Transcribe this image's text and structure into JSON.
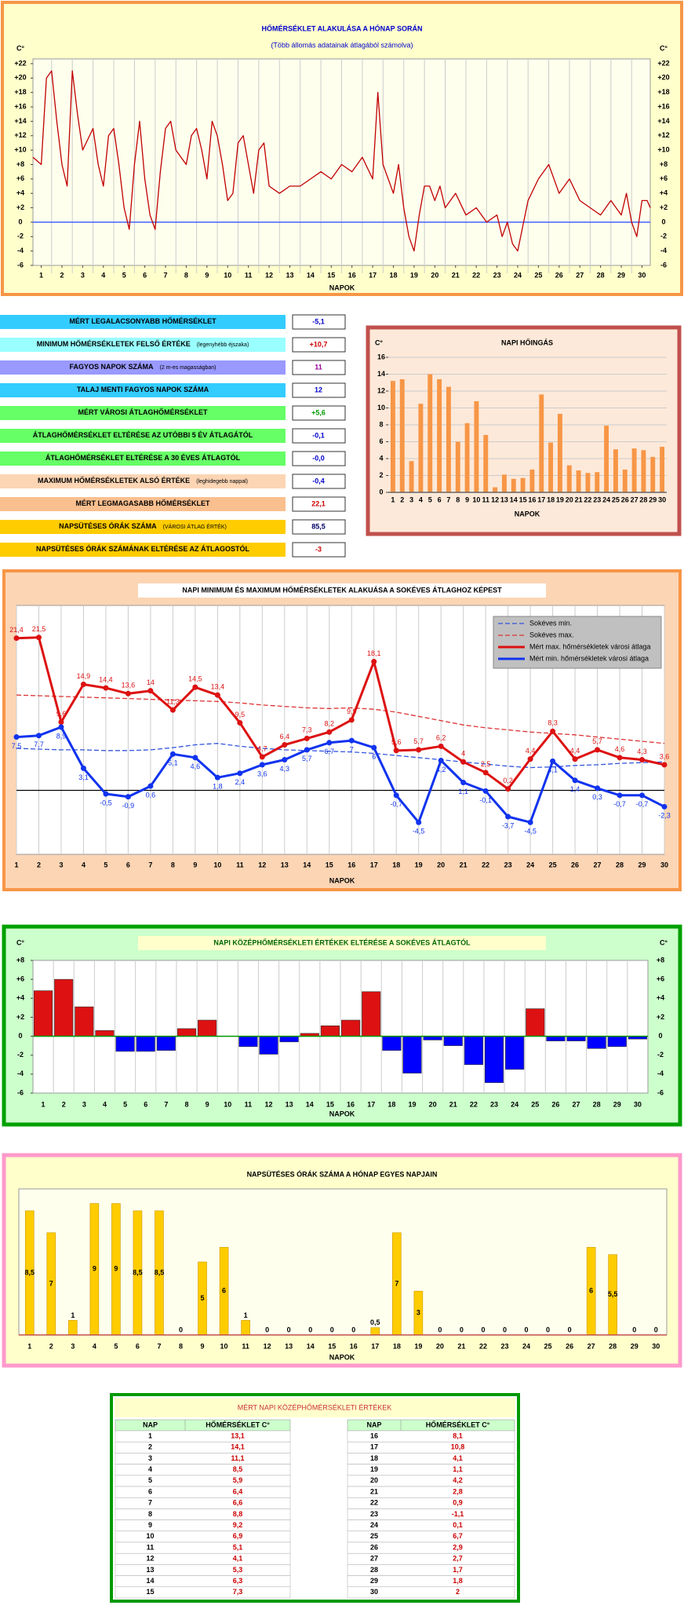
{
  "chart_data": [
    {
      "type": "line",
      "title": "HŐMÉRSÉKLET ALAKULÁSA A HÓNAP SORÁN",
      "subtitle": "(Több állomás adatainak átlagából számolva)",
      "y_unit": "C°",
      "xlabel": "NAPOK",
      "color": "#c00000",
      "zero_line_color": "#3355ff",
      "xlim": [
        0.6,
        30.4
      ],
      "xticks": [
        1,
        2,
        3,
        4,
        5,
        6,
        7,
        8,
        9,
        10,
        11,
        12,
        13,
        14,
        15,
        16,
        17,
        18,
        19,
        20,
        21,
        22,
        23,
        24,
        25,
        26,
        27,
        28,
        29,
        30
      ],
      "ylim": [
        -6,
        22
      ],
      "yticks": [
        {
          "value": 22,
          "label": "+22"
        },
        {
          "value": 20,
          "label": "+20"
        },
        {
          "value": 18,
          "label": "+18"
        },
        {
          "value": 16,
          "label": "+16"
        },
        {
          "value": 14,
          "label": "+14"
        },
        {
          "value": 12,
          "label": "+12"
        },
        {
          "value": 10,
          "label": "+10"
        },
        {
          "value": 8,
          "label": "+8"
        },
        {
          "value": 6,
          "label": "+6"
        },
        {
          "value": 4,
          "label": "+4"
        },
        {
          "value": 2,
          "label": "+2"
        },
        0,
        -2,
        -4,
        -6
      ],
      "x": [
        0.6,
        1,
        1.25,
        1.5,
        1.75,
        2,
        2.25,
        2.5,
        2.75,
        3,
        3.5,
        3.75,
        4,
        4.25,
        4.5,
        4.75,
        5,
        5.25,
        5.5,
        5.75,
        6,
        6.25,
        6.5,
        6.75,
        7,
        7.25,
        7.5,
        8,
        8.25,
        8.5,
        8.75,
        9,
        9.25,
        9.5,
        9.75,
        10,
        10.25,
        10.5,
        10.75,
        11,
        11.25,
        11.5,
        11.75,
        12,
        12.5,
        13,
        13.5,
        14,
        14.5,
        15,
        15.5,
        16,
        16.5,
        17,
        17.25,
        17.5,
        18,
        18.25,
        18.5,
        18.75,
        19,
        19.25,
        19.5,
        19.75,
        20,
        20.25,
        20.5,
        21,
        21.5,
        22,
        22.5,
        23,
        23.25,
        23.5,
        23.75,
        24,
        24.5,
        25,
        25.5,
        26,
        26.5,
        27,
        27.5,
        28,
        28.5,
        29,
        29.25,
        29.5,
        29.75,
        30,
        30.25,
        30.4
      ],
      "values": [
        9,
        8,
        20,
        21,
        14,
        8,
        5,
        21,
        15,
        10,
        13,
        8,
        5,
        12,
        13,
        8,
        2,
        -1,
        8,
        14,
        6,
        1,
        -1,
        7,
        13,
        14,
        10,
        8,
        12,
        13,
        10,
        6,
        14,
        12,
        8,
        3,
        4,
        11,
        12,
        8,
        4,
        10,
        11,
        5,
        4,
        5,
        5,
        6,
        7,
        6,
        8,
        7,
        9,
        6,
        18,
        8,
        4,
        8,
        2,
        -2,
        -4,
        1,
        5,
        5,
        3,
        5,
        2,
        4,
        1,
        2,
        0,
        1,
        -2,
        0,
        -3,
        -4,
        3,
        6,
        8,
        4,
        6,
        3,
        2,
        1,
        3,
        1,
        4,
        0,
        -2,
        3,
        3,
        2
      ]
    },
    {
      "type": "bar",
      "title": "NAPI HŐINGÁS",
      "y_unit": "C°",
      "xlabel": "NAPOK",
      "color": "#f79646",
      "grid": true,
      "categories": [
        1,
        2,
        3,
        4,
        5,
        6,
        7,
        8,
        9,
        10,
        11,
        12,
        13,
        14,
        15,
        16,
        17,
        18,
        19,
        20,
        21,
        22,
        23,
        24,
        25,
        26,
        27,
        28,
        29,
        30
      ],
      "values": [
        13.2,
        13.4,
        3.7,
        10.5,
        14.0,
        13.4,
        12.5,
        6.0,
        8.2,
        10.8,
        6.8,
        0.6,
        2.1,
        1.6,
        1.7,
        2.7,
        11.6,
        5.9,
        9.3,
        3.2,
        2.6,
        2.3,
        2.4,
        7.9,
        5.1,
        2.7,
        5.2,
        5.0,
        4.2,
        5.4
      ],
      "ylim": [
        0,
        16
      ],
      "yticks": [
        0,
        2,
        4,
        6,
        8,
        10,
        12,
        14,
        16
      ]
    },
    {
      "type": "line",
      "title": "NAPI MINIMUM ÉS MAXIMUM HŐMÉRSÉKLETEK ALAKUÁSA A SOKÉVES ÁTLAGHOZ KÉPEST",
      "xlabel": "NAPOK",
      "zero_line_color": "#000000",
      "legend": "top-right",
      "categories": [
        1,
        2,
        3,
        4,
        5,
        6,
        7,
        8,
        9,
        10,
        11,
        12,
        13,
        14,
        15,
        16,
        17,
        18,
        19,
        20,
        21,
        22,
        23,
        24,
        25,
        26,
        27,
        28,
        29,
        30
      ],
      "ylim": [
        -9,
        26
      ],
      "series": [
        {
          "name": "Sokéves min.",
          "color": "#3355dd",
          "dashed": true,
          "values": [
            5.9,
            5.8,
            5.7,
            5.7,
            5.6,
            5.6,
            5.7,
            6.0,
            6.4,
            6.6,
            6.2,
            5.9,
            5.7,
            5.6,
            5.5,
            5.4,
            5.2,
            4.9,
            4.6,
            4.3,
            4.0,
            3.7,
            3.4,
            3.2,
            3.3,
            3.5,
            3.6,
            3.8,
            3.9,
            4.0
          ]
        },
        {
          "name": "Sokéves max.",
          "color": "#dd3333",
          "dashed": true,
          "values": [
            13.4,
            13.3,
            13.2,
            13.1,
            13.0,
            12.9,
            12.8,
            12.7,
            12.6,
            12.5,
            12.3,
            12.0,
            11.8,
            11.6,
            11.5,
            11.6,
            11.4,
            11.0,
            10.4,
            9.8,
            9.2,
            8.8,
            8.5,
            8.2,
            8.0,
            7.8,
            7.5,
            7.2,
            6.9,
            6.6
          ]
        },
        {
          "name": "Mért max. hőmérsékletek városi átlaga",
          "color": "#dd1111",
          "markers": true,
          "label_position": "above",
          "values": [
            21.4,
            21.5,
            9.6,
            14.9,
            14.4,
            13.6,
            14,
            11.3,
            14.5,
            13.4,
            9.5,
            4.7,
            6.4,
            7.3,
            8.2,
            9.9,
            18.1,
            5.6,
            5.7,
            6.2,
            4,
            2.5,
            0.2,
            4.4,
            8.3,
            4.4,
            5.7,
            4.6,
            4.3,
            3.6
          ],
          "value_labels": [
            "21,4",
            "21,5",
            "9,6",
            "14,9",
            "14,4",
            "13,6",
            "14",
            "11,3",
            "14,5",
            "13,4",
            "9,5",
            "4,7",
            "6,4",
            "7,3",
            "8,2",
            "9,9",
            "18,1",
            "5,6",
            "5,7",
            "6,2",
            "4",
            "2,5",
            "0,2",
            "4,4",
            "8,3",
            "4,4",
            "5,7",
            "4,6",
            "4,3",
            "3,6"
          ]
        },
        {
          "name": "Mért min. hőmérsékletek városi átlaga",
          "color": "#1133ee",
          "markers": true,
          "label_position": "below",
          "values": [
            7.5,
            7.7,
            8.9,
            3.1,
            -0.5,
            -0.9,
            0.6,
            5.1,
            4.6,
            1.8,
            2.4,
            3.6,
            4.3,
            5.7,
            6.7,
            7,
            6,
            -0.7,
            -4.5,
            4.2,
            1.1,
            -0.1,
            -3.7,
            -4.5,
            4.1,
            1.4,
            0.3,
            -0.7,
            -0.7,
            -2.3
          ],
          "value_labels": [
            "7,5",
            "7,7",
            "8,9",
            "3,1",
            "-0,5",
            "-0,9",
            "0,6",
            "5,1",
            "4,6",
            "1,8",
            "2,4",
            "3,6",
            "4,3",
            "5,7",
            "6,7",
            "7",
            "6",
            "-0,7",
            "-4,5",
            "4,2",
            "1,1",
            "-0,1",
            "-3,7",
            "-4,5",
            "4,1",
            "1,4",
            "0,3",
            "-0,7",
            "-0,7",
            "-2,3"
          ]
        }
      ]
    },
    {
      "type": "bar",
      "title": "NAPI KÖZÉPHŐMÉRSÉKLETI ÉRTÉKEK ELTÉRÉSE A SOKÉVES ÁTLAGTÓL",
      "y_unit": "C°",
      "xlabel": "NAPOK",
      "color": "#dd1111",
      "negative_color": "#0000ff",
      "zero_line_color": "#009900",
      "categories": [
        1,
        2,
        3,
        4,
        5,
        6,
        7,
        8,
        9,
        10,
        11,
        12,
        13,
        14,
        15,
        16,
        17,
        18,
        19,
        20,
        21,
        22,
        23,
        24,
        25,
        26,
        27,
        28,
        29,
        30
      ],
      "values": [
        4.8,
        6.0,
        3.1,
        0.6,
        -1.6,
        -1.6,
        -1.5,
        0.8,
        1.7,
        0,
        -1.1,
        -1.9,
        -0.6,
        0.3,
        1.1,
        1.7,
        4.7,
        -1.5,
        -3.9,
        -0.4,
        -1.0,
        -3.0,
        -4.9,
        -3.5,
        2.9,
        -0.5,
        -0.5,
        -1.3,
        -1.1,
        -0.3
      ],
      "ylim": [
        -6,
        8
      ],
      "yticks": [
        {
          "value": 8,
          "label": "+8"
        },
        {
          "value": 6,
          "label": "+6"
        },
        {
          "value": 4,
          "label": "+4"
        },
        {
          "value": 2,
          "label": "+2"
        },
        0,
        -2,
        -4,
        -6
      ]
    },
    {
      "type": "bar",
      "title": "NAPSÜTÉSES ÓRÁK SZÁMA A HÓNAP EGYES NAPJAIN",
      "xlabel": "NAPOK",
      "color": "#ffcc00",
      "zero_line_color": "#c0504d",
      "categories": [
        1,
        2,
        3,
        4,
        5,
        6,
        7,
        8,
        9,
        10,
        11,
        12,
        13,
        14,
        15,
        16,
        17,
        18,
        19,
        20,
        21,
        22,
        23,
        24,
        25,
        26,
        27,
        28,
        29,
        30
      ],
      "values": [
        8.5,
        7,
        1,
        9,
        9,
        8.5,
        8.5,
        0,
        5,
        6,
        1,
        0,
        0,
        0,
        0,
        0,
        0.5,
        7,
        3,
        0,
        0,
        0,
        0,
        0,
        0,
        0,
        6,
        5.5,
        0,
        0
      ],
      "value_labels": [
        "8,5",
        "7",
        "1",
        "9",
        "9",
        "8,5",
        "8,5",
        "0",
        "5",
        "6",
        "1",
        "0",
        "0",
        "0",
        "0",
        "0",
        "0,5",
        "7",
        "3",
        "0",
        "0",
        "0",
        "0",
        "0",
        "0",
        "0",
        "6",
        "5,5",
        "0",
        "0"
      ],
      "ylim": [
        0,
        10
      ]
    }
  ],
  "stats": [
    {
      "label": "MÉRT LEGALACSONYABB HŐMÉRSÉKLET",
      "value": "-5,1"
    },
    {
      "label": "MINIMUM HŐMÉRSÉKLETEK FELSŐ ÉRTÉKE",
      "note": "(legenyhébb éjszaka)",
      "value": "+10,7"
    },
    {
      "label": "FAGYOS NAPOK SZÁMA",
      "note": "(2 m-es magasságban)",
      "value": "11"
    },
    {
      "label": "TALAJ MENTI FAGYOS NAPOK SZÁMA",
      "value": "12"
    },
    {
      "label": "MÉRT VÁROSI ÁTLAGHŐMÉRSÉKLET",
      "value": "+5,6"
    },
    {
      "label": "ÁTLAGHŐMÉRSÉKLET ELTÉRÉSE AZ UTÓBBI 5 ÉV ÁTLAGÁTÓL",
      "value": "-0,1"
    },
    {
      "label": "ÁTLAGHŐMÉRSÉKLET ELTÉRÉSE A 30 ÉVES ÁTLAGTÓL",
      "value": "-0,0"
    },
    {
      "label": "MAXIMUM HŐMÉRSÉKLETEK ALSÓ ÉRTÉKE",
      "note": "(leghidegebb nappal)",
      "value": "-0,4"
    },
    {
      "label": "MÉRT LEGMAGASABB HŐMÉRSÉKLET",
      "value": "22,1"
    },
    {
      "label": "NAPSÜTÉSES ÓRÁK SZÁMA",
      "note": "(VÁROSI ÁTLAG ÉRTÉK)",
      "value": "85,5"
    },
    {
      "label": "NAPSÜTÉSES ÓRÁK SZÁMÁNAK ELTÉRÉSE AZ ÁTLAGOSTÓL",
      "value": "-3"
    }
  ],
  "table": {
    "title": "MÉRT NAPI KÖZÉPHŐMÉRSÉKLETI ÉRTÉKEK",
    "header": [
      "NAP",
      "HŐMÉRSÉKLET  C°"
    ],
    "rows": [
      [
        1,
        "13,1"
      ],
      [
        2,
        "14,1"
      ],
      [
        3,
        "11,1"
      ],
      [
        4,
        "8,5"
      ],
      [
        5,
        "5,9"
      ],
      [
        6,
        "6,4"
      ],
      [
        7,
        "6,6"
      ],
      [
        8,
        "8,8"
      ],
      [
        9,
        "9,2"
      ],
      [
        10,
        "6,9"
      ],
      [
        11,
        "5,1"
      ],
      [
        12,
        "4,1"
      ],
      [
        13,
        "5,3"
      ],
      [
        14,
        "6,3"
      ],
      [
        15,
        "7,3"
      ],
      [
        16,
        "8,1"
      ],
      [
        17,
        "10,8"
      ],
      [
        18,
        "4,1"
      ],
      [
        19,
        "1,1"
      ],
      [
        20,
        "4,2"
      ],
      [
        21,
        "2,8"
      ],
      [
        22,
        "0,9"
      ],
      [
        23,
        "-1,1"
      ],
      [
        24,
        "0,1"
      ],
      [
        25,
        "6,7"
      ],
      [
        26,
        "2,9"
      ],
      [
        27,
        "2,7"
      ],
      [
        28,
        "1,7"
      ],
      [
        29,
        "1,8"
      ],
      [
        30,
        "2"
      ]
    ]
  }
}
